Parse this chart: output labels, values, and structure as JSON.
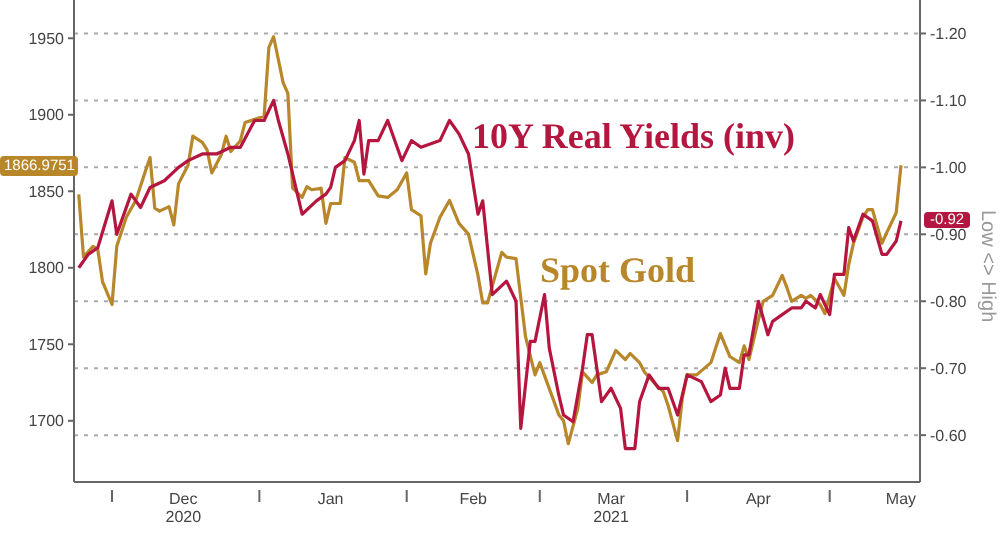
{
  "chart_data": {
    "type": "line",
    "series": [
      {
        "name": "Spot Gold",
        "color": "#b8872a",
        "x": [
          "2020-11-24",
          "2020-11-25",
          "2020-11-27",
          "2020-11-28",
          "2020-11-29",
          "2020-12-01",
          "2020-12-02",
          "2020-12-04",
          "2020-12-06",
          "2020-12-08",
          "2020-12-09",
          "2020-12-10",
          "2020-12-11",
          "2020-12-13",
          "2020-12-14",
          "2020-12-15",
          "2020-12-17",
          "2020-12-18",
          "2020-12-20",
          "2020-12-21",
          "2020-12-22",
          "2020-12-24",
          "2020-12-25",
          "2020-12-26",
          "2020-12-28",
          "2020-12-29",
          "2020-12-31",
          "2021-01-02",
          "2021-01-03",
          "2021-01-04",
          "2021-01-06",
          "2021-01-07",
          "2021-01-08",
          "2021-01-10",
          "2021-01-11",
          "2021-01-12",
          "2021-01-14",
          "2021-01-15",
          "2021-01-16",
          "2021-01-18",
          "2021-01-19",
          "2021-01-21",
          "2021-01-22",
          "2021-01-24",
          "2021-01-26",
          "2021-01-28",
          "2021-01-30",
          "2021-02-01",
          "2021-02-02",
          "2021-02-04",
          "2021-02-05",
          "2021-02-06",
          "2021-02-08",
          "2021-02-10",
          "2021-02-12",
          "2021-02-14",
          "2021-02-16",
          "2021-02-17",
          "2021-02-18",
          "2021-02-21",
          "2021-02-22",
          "2021-02-24",
          "2021-02-26",
          "2021-02-28",
          "2021-03-01",
          "2021-03-03",
          "2021-03-05",
          "2021-03-06",
          "2021-03-07",
          "2021-03-09",
          "2021-03-10",
          "2021-03-12",
          "2021-03-13",
          "2021-03-15",
          "2021-03-17",
          "2021-03-19",
          "2021-03-20",
          "2021-03-22",
          "2021-03-23",
          "2021-03-25",
          "2021-03-27",
          "2021-03-28",
          "2021-03-30",
          "2021-03-31",
          "2021-04-01",
          "2021-04-03",
          "2021-04-06",
          "2021-04-08",
          "2021-04-10",
          "2021-04-12",
          "2021-04-13",
          "2021-04-14",
          "2021-04-16",
          "2021-04-17",
          "2021-04-19",
          "2021-04-21",
          "2021-04-22",
          "2021-04-23",
          "2021-04-25",
          "2021-04-26",
          "2021-04-27",
          "2021-04-29",
          "2021-04-30",
          "2021-05-02",
          "2021-05-04",
          "2021-05-05",
          "2021-05-06",
          "2021-05-08",
          "2021-05-09",
          "2021-05-10",
          "2021-05-12",
          "2021-05-13",
          "2021-05-15",
          "2021-05-16"
        ],
        "values": [
          1848,
          1807,
          1814,
          1812,
          1791,
          1776,
          1814,
          1833,
          1844,
          1863,
          1872,
          1839,
          1837,
          1840,
          1828,
          1855,
          1867,
          1886,
          1882,
          1877,
          1862,
          1874,
          1886,
          1876,
          1883,
          1895,
          1897,
          1899,
          1944,
          1951,
          1921,
          1914,
          1852,
          1846,
          1853,
          1851,
          1852,
          1829,
          1842,
          1842,
          1872,
          1869,
          1857,
          1857,
          1847,
          1846,
          1851,
          1862,
          1838,
          1834,
          1796,
          1816,
          1833,
          1844,
          1829,
          1822,
          1795,
          1777,
          1777,
          1810,
          1807,
          1806,
          1755,
          1730,
          1738,
          1721,
          1704,
          1700,
          1685,
          1708,
          1732,
          1725,
          1730,
          1732,
          1746,
          1740,
          1744,
          1738,
          1732,
          1725,
          1719,
          1710,
          1687,
          1715,
          1730,
          1730,
          1738,
          1757,
          1742,
          1738,
          1749,
          1740,
          1766,
          1778,
          1782,
          1795,
          1787,
          1778,
          1782,
          1780,
          1782,
          1776,
          1770,
          1793,
          1782,
          1802,
          1816,
          1833,
          1838,
          1838,
          1816,
          1823,
          1836,
          1867
        ]
      },
      {
        "name": "10Y Real Yields (inv)",
        "color": "#b5163f",
        "axis": "y2",
        "x": [
          "2020-11-24",
          "2020-11-26",
          "2020-11-28",
          "2020-12-01",
          "2020-12-02",
          "2020-12-05",
          "2020-12-07",
          "2020-12-09",
          "2020-12-12",
          "2020-12-15",
          "2020-12-17",
          "2020-12-20",
          "2020-12-23",
          "2020-12-26",
          "2020-12-28",
          "2020-12-31",
          "2021-01-02",
          "2021-01-04",
          "2021-01-05",
          "2021-01-07",
          "2021-01-09",
          "2021-01-10",
          "2021-01-13",
          "2021-01-15",
          "2021-01-16",
          "2021-01-17",
          "2021-01-19",
          "2021-01-21",
          "2021-01-22",
          "2021-01-23",
          "2021-01-24",
          "2021-01-26",
          "2021-01-28",
          "2021-01-31",
          "2021-02-02",
          "2021-02-04",
          "2021-02-08",
          "2021-02-10",
          "2021-02-12",
          "2021-02-14",
          "2021-02-16",
          "2021-02-17",
          "2021-02-19",
          "2021-02-22",
          "2021-02-24",
          "2021-02-25",
          "2021-02-27",
          "2021-02-28",
          "2021-03-02",
          "2021-03-03",
          "2021-03-05",
          "2021-03-06",
          "2021-03-08",
          "2021-03-10",
          "2021-03-11",
          "2021-03-12",
          "2021-03-14",
          "2021-03-16",
          "2021-03-18",
          "2021-03-19",
          "2021-03-21",
          "2021-03-22",
          "2021-03-24",
          "2021-03-26",
          "2021-03-28",
          "2021-03-30",
          "2021-04-01",
          "2021-04-04",
          "2021-04-06",
          "2021-04-08",
          "2021-04-09",
          "2021-04-10",
          "2021-04-12",
          "2021-04-13",
          "2021-04-14",
          "2021-04-16",
          "2021-04-18",
          "2021-04-19",
          "2021-04-21",
          "2021-04-23",
          "2021-04-25",
          "2021-04-26",
          "2021-04-28",
          "2021-04-29",
          "2021-05-01",
          "2021-05-02",
          "2021-05-04",
          "2021-05-05",
          "2021-05-06",
          "2021-05-08",
          "2021-05-10",
          "2021-05-12",
          "2021-05-13",
          "2021-05-15",
          "2021-05-16"
        ],
        "values": [
          -0.85,
          -0.87,
          -0.88,
          -0.95,
          -0.9,
          -0.96,
          -0.94,
          -0.97,
          -0.98,
          -1.0,
          -1.01,
          -1.02,
          -1.02,
          -1.03,
          -1.03,
          -1.07,
          -1.07,
          -1.1,
          -1.07,
          -1.02,
          -0.96,
          -0.93,
          -0.95,
          -0.96,
          -0.97,
          -1.0,
          -1.01,
          -1.04,
          -1.07,
          -0.99,
          -1.04,
          -1.04,
          -1.07,
          -1.01,
          -1.04,
          -1.03,
          -1.04,
          -1.07,
          -1.05,
          -1.02,
          -0.93,
          -0.95,
          -0.81,
          -0.83,
          -0.8,
          -0.61,
          -0.74,
          -0.74,
          -0.81,
          -0.73,
          -0.66,
          -0.63,
          -0.62,
          -0.7,
          -0.75,
          -0.75,
          -0.65,
          -0.67,
          -0.64,
          -0.58,
          -0.58,
          -0.65,
          -0.69,
          -0.67,
          -0.67,
          -0.63,
          -0.69,
          -0.68,
          -0.65,
          -0.66,
          -0.7,
          -0.67,
          -0.67,
          -0.72,
          -0.72,
          -0.8,
          -0.75,
          -0.77,
          -0.78,
          -0.79,
          -0.79,
          -0.8,
          -0.79,
          -0.81,
          -0.78,
          -0.84,
          -0.84,
          -0.91,
          -0.89,
          -0.93,
          -0.92,
          -0.87,
          -0.87,
          -0.89,
          -0.92
        ]
      }
    ],
    "xlim": [
      "2020-11-23",
      "2021-05-20"
    ],
    "xticks": [
      {
        "value": "2020-12-01",
        "label": null
      },
      {
        "value": "2020-12-16",
        "label": "Dec\n2020"
      },
      {
        "value": "2021-01-01",
        "label": null
      },
      {
        "value": "2021-01-16",
        "label": "Jan"
      },
      {
        "value": "2021-02-01",
        "label": null
      },
      {
        "value": "2021-02-15",
        "label": "Feb"
      },
      {
        "value": "2021-03-01",
        "label": null
      },
      {
        "value": "2021-03-16",
        "label": "Mar\n2021"
      },
      {
        "value": "2021-04-01",
        "label": null
      },
      {
        "value": "2021-04-16",
        "label": "Apr"
      },
      {
        "value": "2021-05-01",
        "label": null
      },
      {
        "value": "2021-05-16",
        "label": "May"
      }
    ],
    "ylim": [
      1660,
      1975
    ],
    "yticks": [
      1700,
      1750,
      1800,
      1850,
      1900,
      1950
    ],
    "y2lim": [
      -0.53,
      -1.25
    ],
    "y2ticks": [
      {
        "value": -1.2,
        "label": "-1.20"
      },
      {
        "value": -1.1,
        "label": "-1.10"
      },
      {
        "value": -1.0,
        "label": "-1.00"
      },
      {
        "value": -0.9,
        "label": "-0.90"
      },
      {
        "value": -0.8,
        "label": "-0.80"
      },
      {
        "value": -0.7,
        "label": "-0.70"
      },
      {
        "value": -0.6,
        "label": "-0.60"
      }
    ],
    "y2label": "Low <> High",
    "annotations": [
      "1866.9751",
      "-0.92"
    ],
    "grid": true,
    "legend": false,
    "marker": "none",
    "line_style": "solid"
  }
}
